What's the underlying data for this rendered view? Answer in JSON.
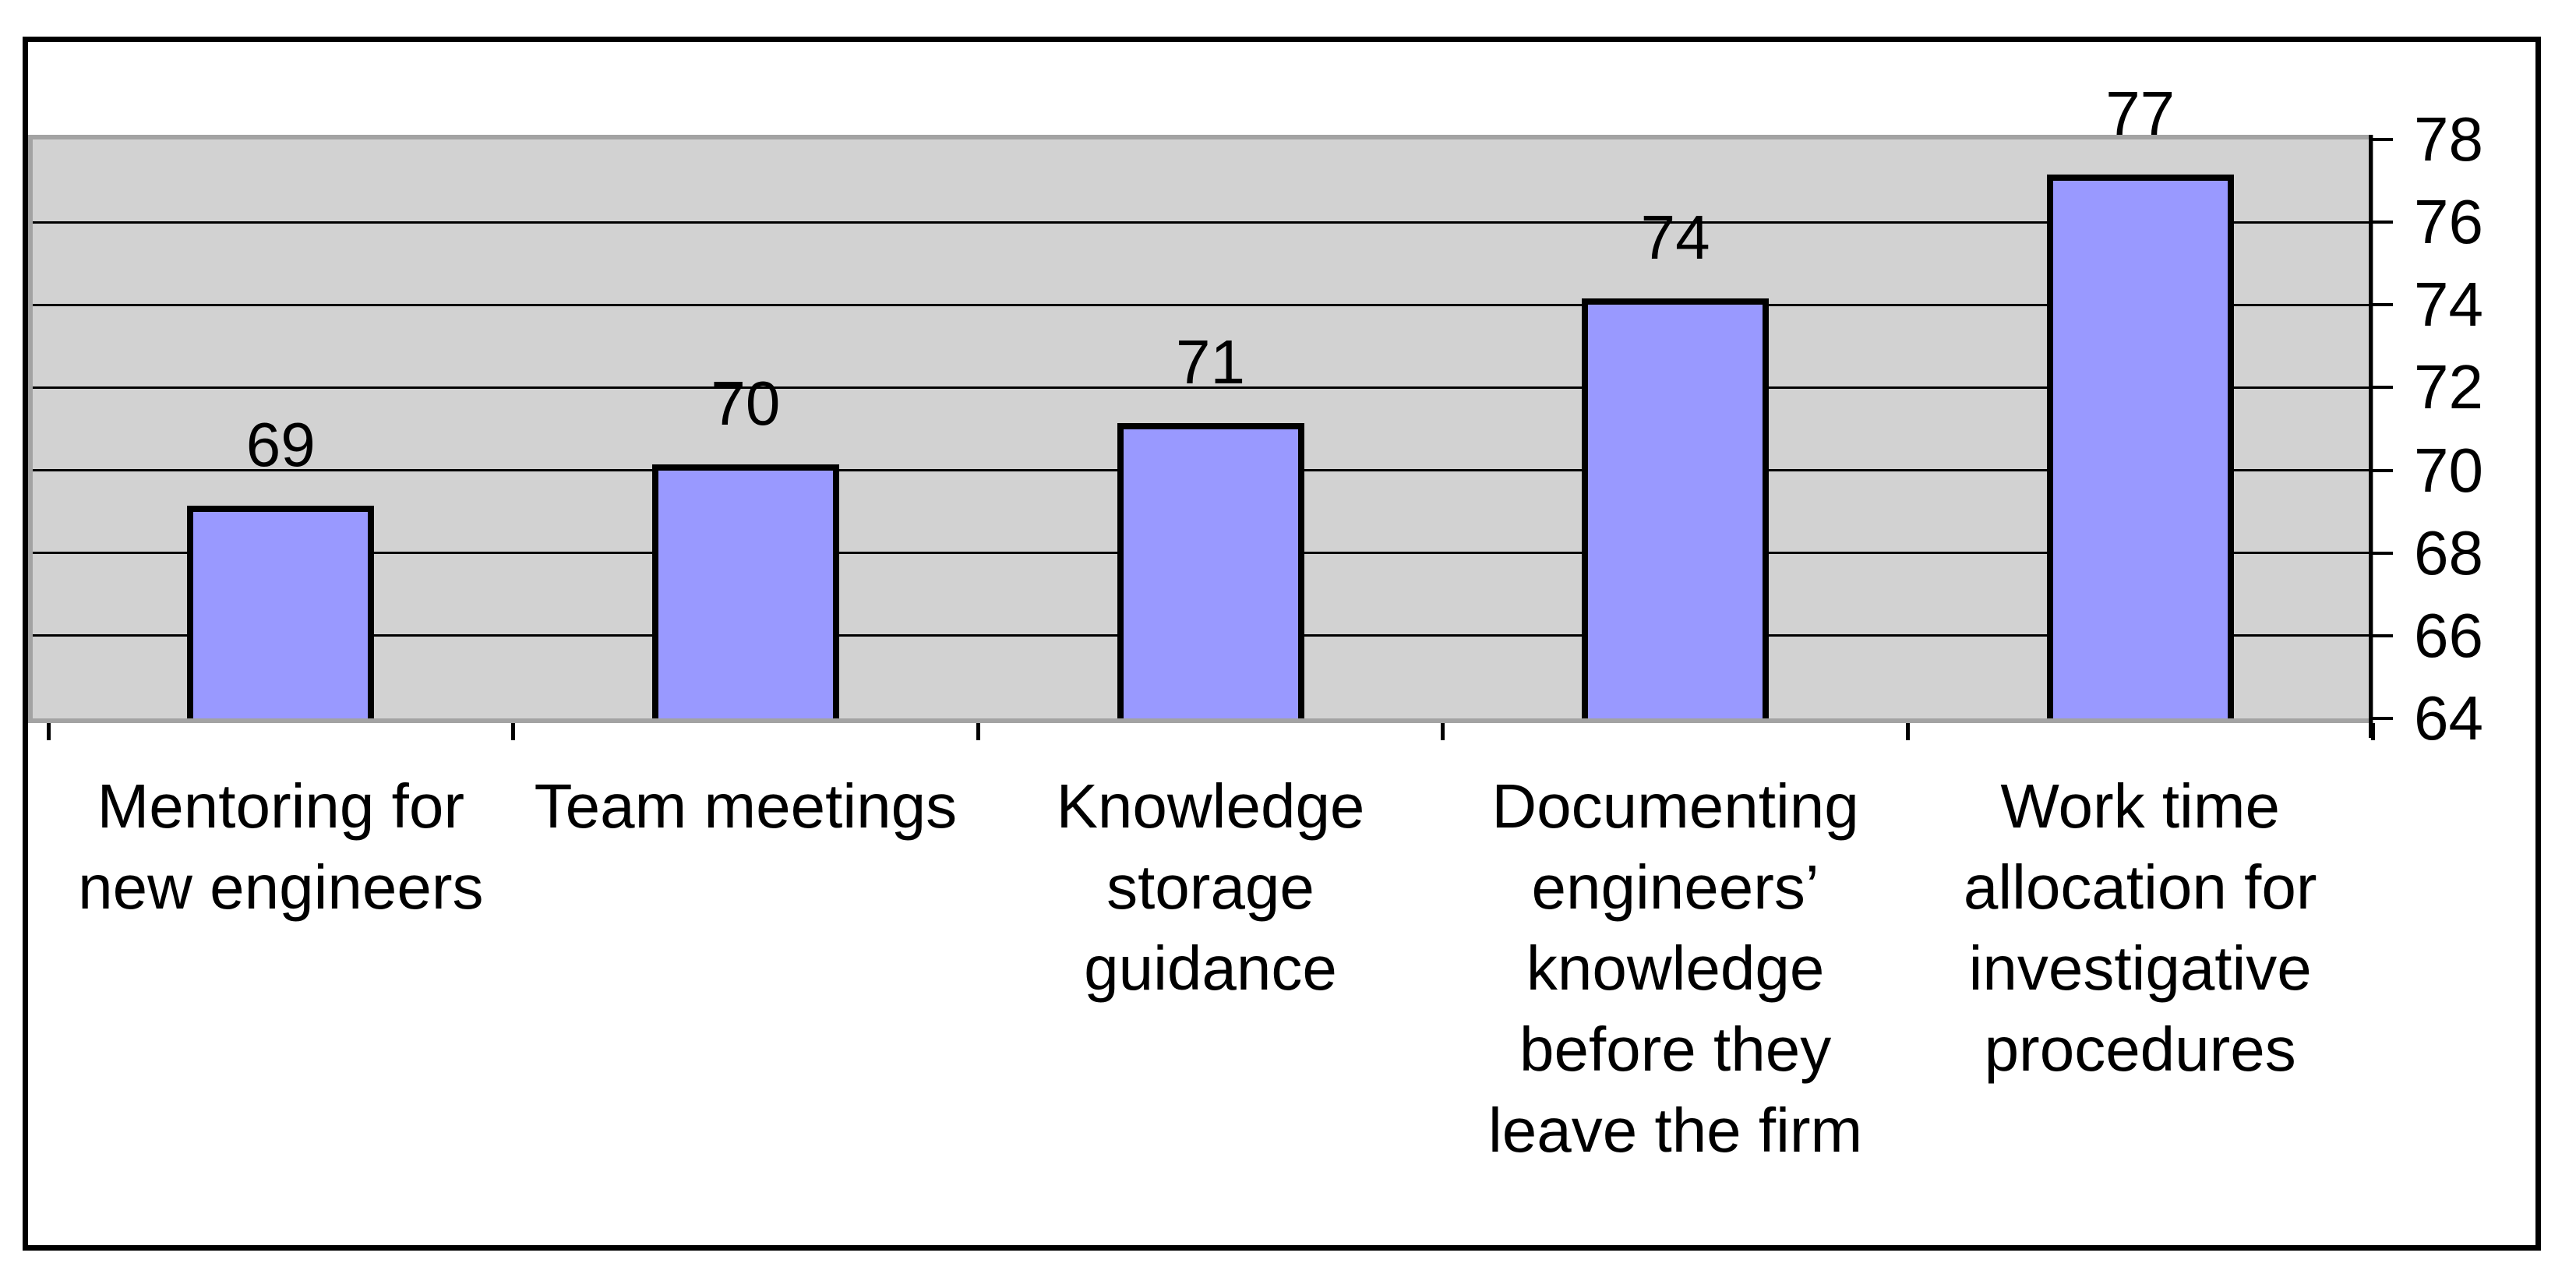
{
  "chart_data": {
    "type": "bar",
    "categories": [
      "Mentoring for\nnew engineers",
      "Team meetings",
      "Knowledge\nstorage\nguidance",
      "Documenting\nengineers’\nknowledge\nbefore they\nleave the firm",
      "Work time\nallocation for\ninvestigative\nprocedures"
    ],
    "values": [
      69,
      70,
      71,
      74,
      77
    ],
    "data_labels": [
      "69",
      "70",
      "71",
      "74",
      "77"
    ],
    "title": "",
    "xlabel": "",
    "ylabel": "",
    "ylim": [
      64,
      78
    ],
    "y_ticks": [
      64,
      66,
      68,
      70,
      72,
      74,
      76,
      78
    ],
    "y_axis_side": "right",
    "grid": true,
    "legend": "none",
    "colors": {
      "bar_fill": "#9999FF",
      "bar_border": "#000000",
      "plot_background": "#D2D2D2",
      "plot_border": "#A3A3A3",
      "gridline": "#000000",
      "axis_line": "#000000",
      "tick": "#000000",
      "text": "#000000",
      "chart_background": "#FFFFFF",
      "frame_border": "#000000"
    }
  }
}
